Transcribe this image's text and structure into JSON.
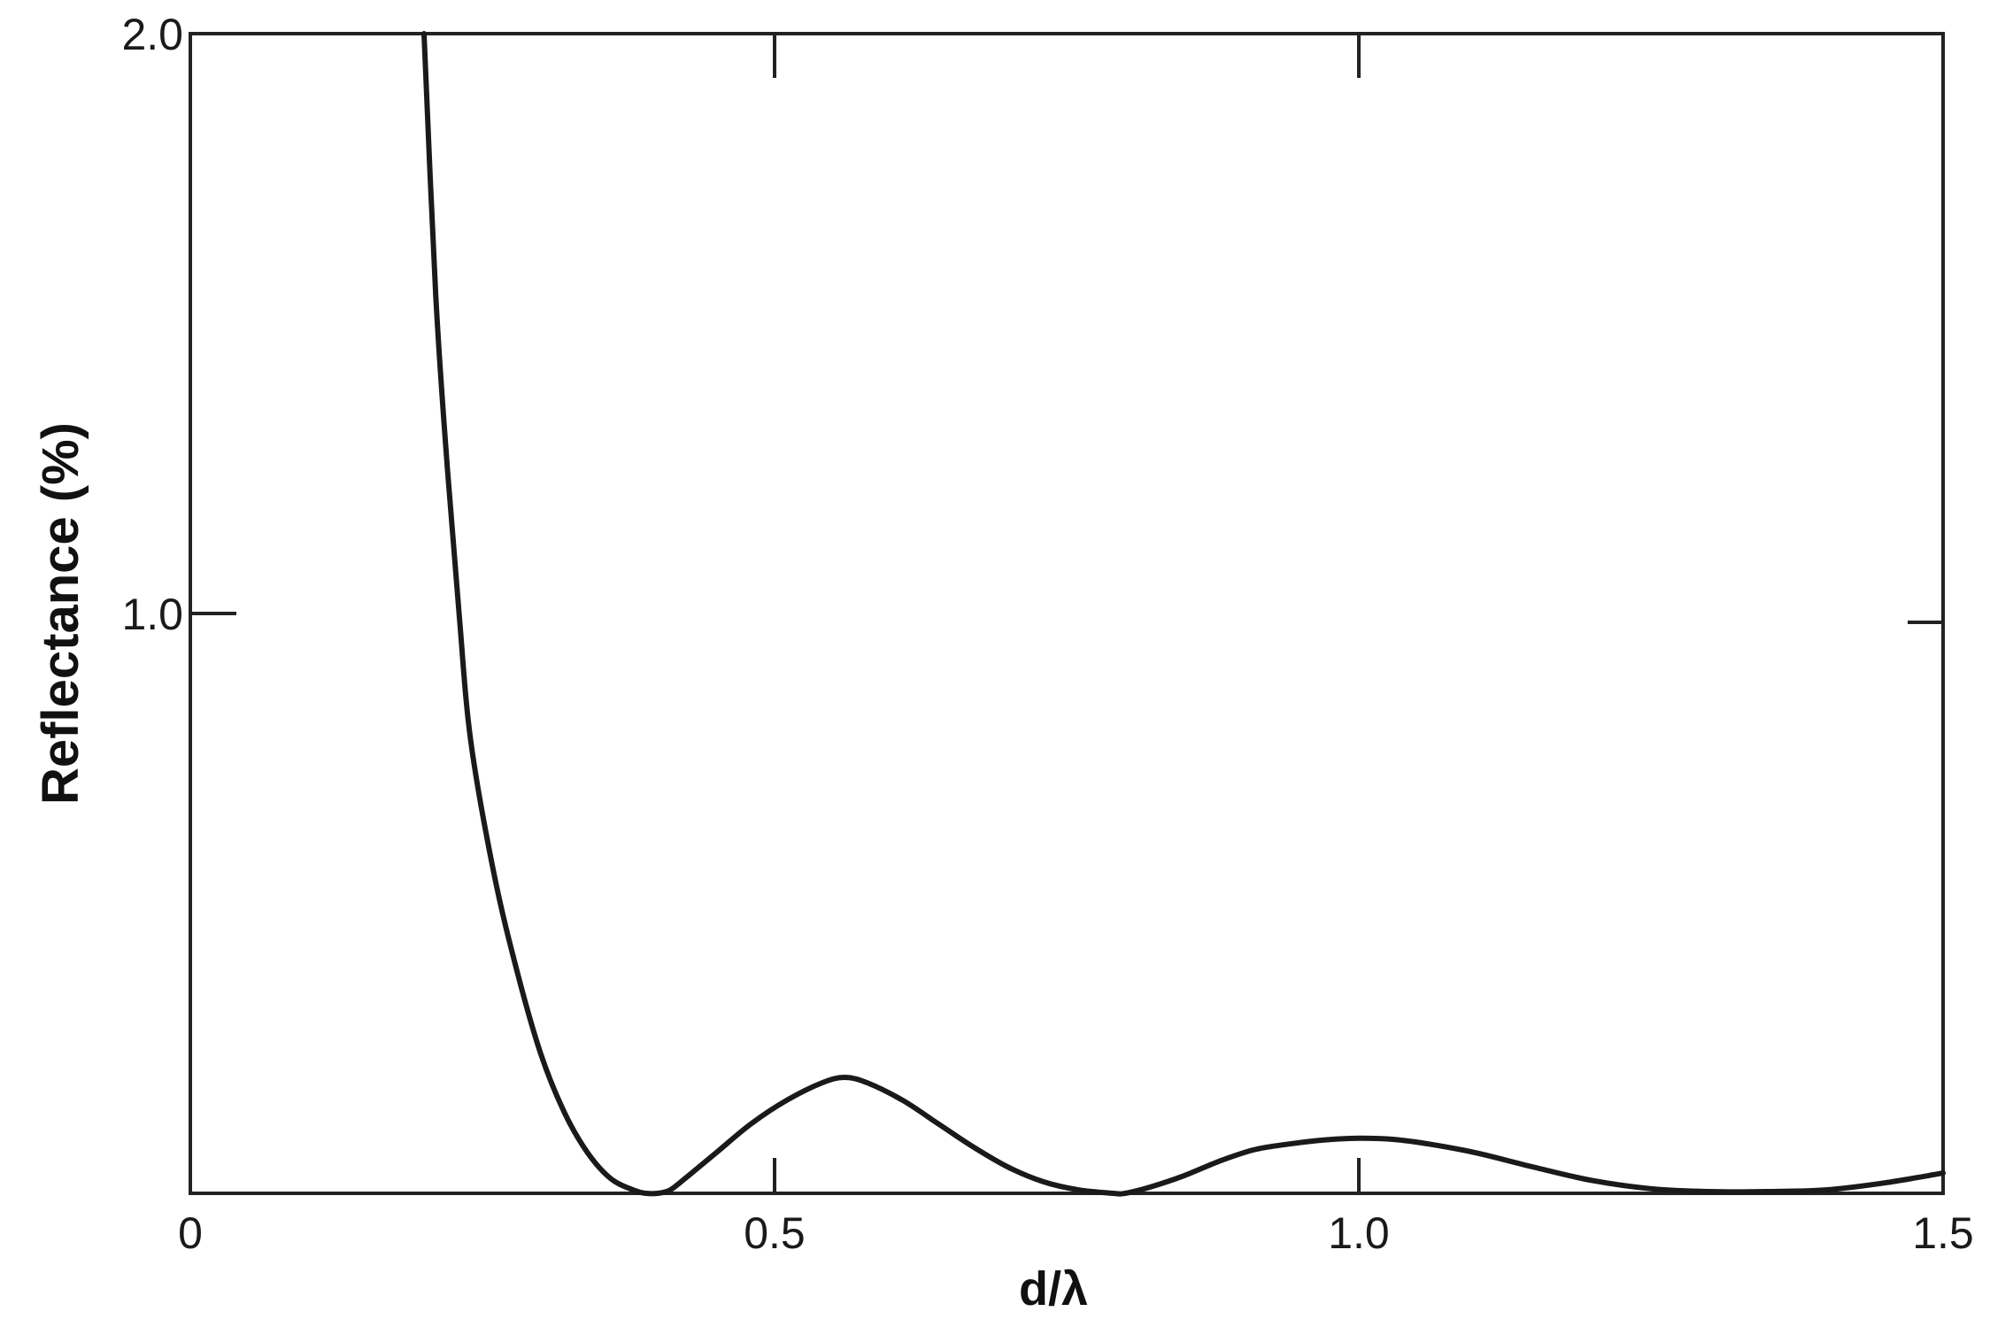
{
  "chart_data": {
    "type": "line",
    "title": "",
    "xlabel": "d/λ",
    "ylabel": "Reflectance (%)",
    "xlim": [
      0,
      1.5
    ],
    "ylim": [
      0,
      2.0
    ],
    "x_ticks": [
      0,
      0.5,
      1.0,
      1.5
    ],
    "x_tick_labels": [
      "0",
      "0.5",
      "1.0",
      "1.5"
    ],
    "y_ticks": [
      1.0,
      2.0
    ],
    "y_tick_labels": [
      "1.0",
      "2.0"
    ],
    "grid": false,
    "legend": "none",
    "colors": {
      "line": "#1a1a1a",
      "axes": "#222222",
      "background": "#ffffff"
    },
    "series": [
      {
        "x": [
          0.2,
          0.21,
          0.22,
          0.23,
          0.24,
          0.26,
          0.28,
          0.3,
          0.32,
          0.34,
          0.36,
          0.38,
          0.39,
          0.4,
          0.41,
          0.42,
          0.45,
          0.48,
          0.51,
          0.54,
          0.56,
          0.58,
          0.61,
          0.64,
          0.67,
          0.7,
          0.73,
          0.76,
          0.79,
          0.8,
          0.82,
          0.85,
          0.88,
          0.91,
          0.94,
          0.97,
          1.0,
          1.03,
          1.06,
          1.1,
          1.15,
          1.2,
          1.25,
          1.3,
          1.35,
          1.4,
          1.45,
          1.5
        ],
        "y": [
          2.0,
          1.55,
          1.25,
          1.0,
          0.78,
          0.55,
          0.38,
          0.24,
          0.14,
          0.07,
          0.025,
          0.005,
          0.0,
          0.0,
          0.005,
          0.02,
          0.07,
          0.12,
          0.16,
          0.19,
          0.2,
          0.19,
          0.16,
          0.12,
          0.08,
          0.045,
          0.02,
          0.006,
          0.0,
          0.0,
          0.01,
          0.03,
          0.055,
          0.075,
          0.085,
          0.092,
          0.095,
          0.093,
          0.085,
          0.07,
          0.045,
          0.022,
          0.008,
          0.003,
          0.003,
          0.006,
          0.018,
          0.035
        ]
      }
    ]
  }
}
